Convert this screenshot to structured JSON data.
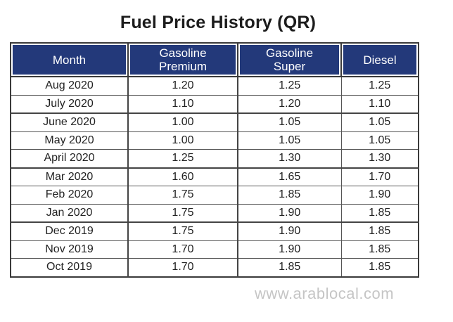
{
  "title": "Fuel Price History (QR)",
  "columns": {
    "month": "Month",
    "premium": "Gasoline\nPremium",
    "super": "Gasoline\nSuper",
    "diesel": "Diesel"
  },
  "rows": [
    {
      "month": "Aug 2020",
      "premium": "1.20",
      "super": "1.25",
      "diesel": "1.25"
    },
    {
      "month": "July 2020",
      "premium": "1.10",
      "super": "1.20",
      "diesel": "1.10"
    },
    {
      "month": "June 2020",
      "premium": "1.00",
      "super": "1.05",
      "diesel": "1.05"
    },
    {
      "month": "May 2020",
      "premium": "1.00",
      "super": "1.05",
      "diesel": "1.05"
    },
    {
      "month": "April 2020",
      "premium": "1.25",
      "super": "1.30",
      "diesel": "1.30"
    },
    {
      "month": "Mar 2020",
      "premium": "1.60",
      "super": "1.65",
      "diesel": "1.70"
    },
    {
      "month": "Feb 2020",
      "premium": "1.75",
      "super": "1.85",
      "diesel": "1.90"
    },
    {
      "month": "Jan 2020",
      "premium": "1.75",
      "super": "1.90",
      "diesel": "1.85"
    },
    {
      "month": "Dec 2019",
      "premium": "1.75",
      "super": "1.90",
      "diesel": "1.85"
    },
    {
      "month": "Nov 2019",
      "premium": "1.70",
      "super": "1.90",
      "diesel": "1.85"
    },
    {
      "month": "Oct 2019",
      "premium": "1.70",
      "super": "1.85",
      "diesel": "1.85"
    }
  ],
  "watermark": "www.arablocal.com",
  "colors": {
    "header_bg": "#23397a",
    "header_text": "#ffffff"
  }
}
